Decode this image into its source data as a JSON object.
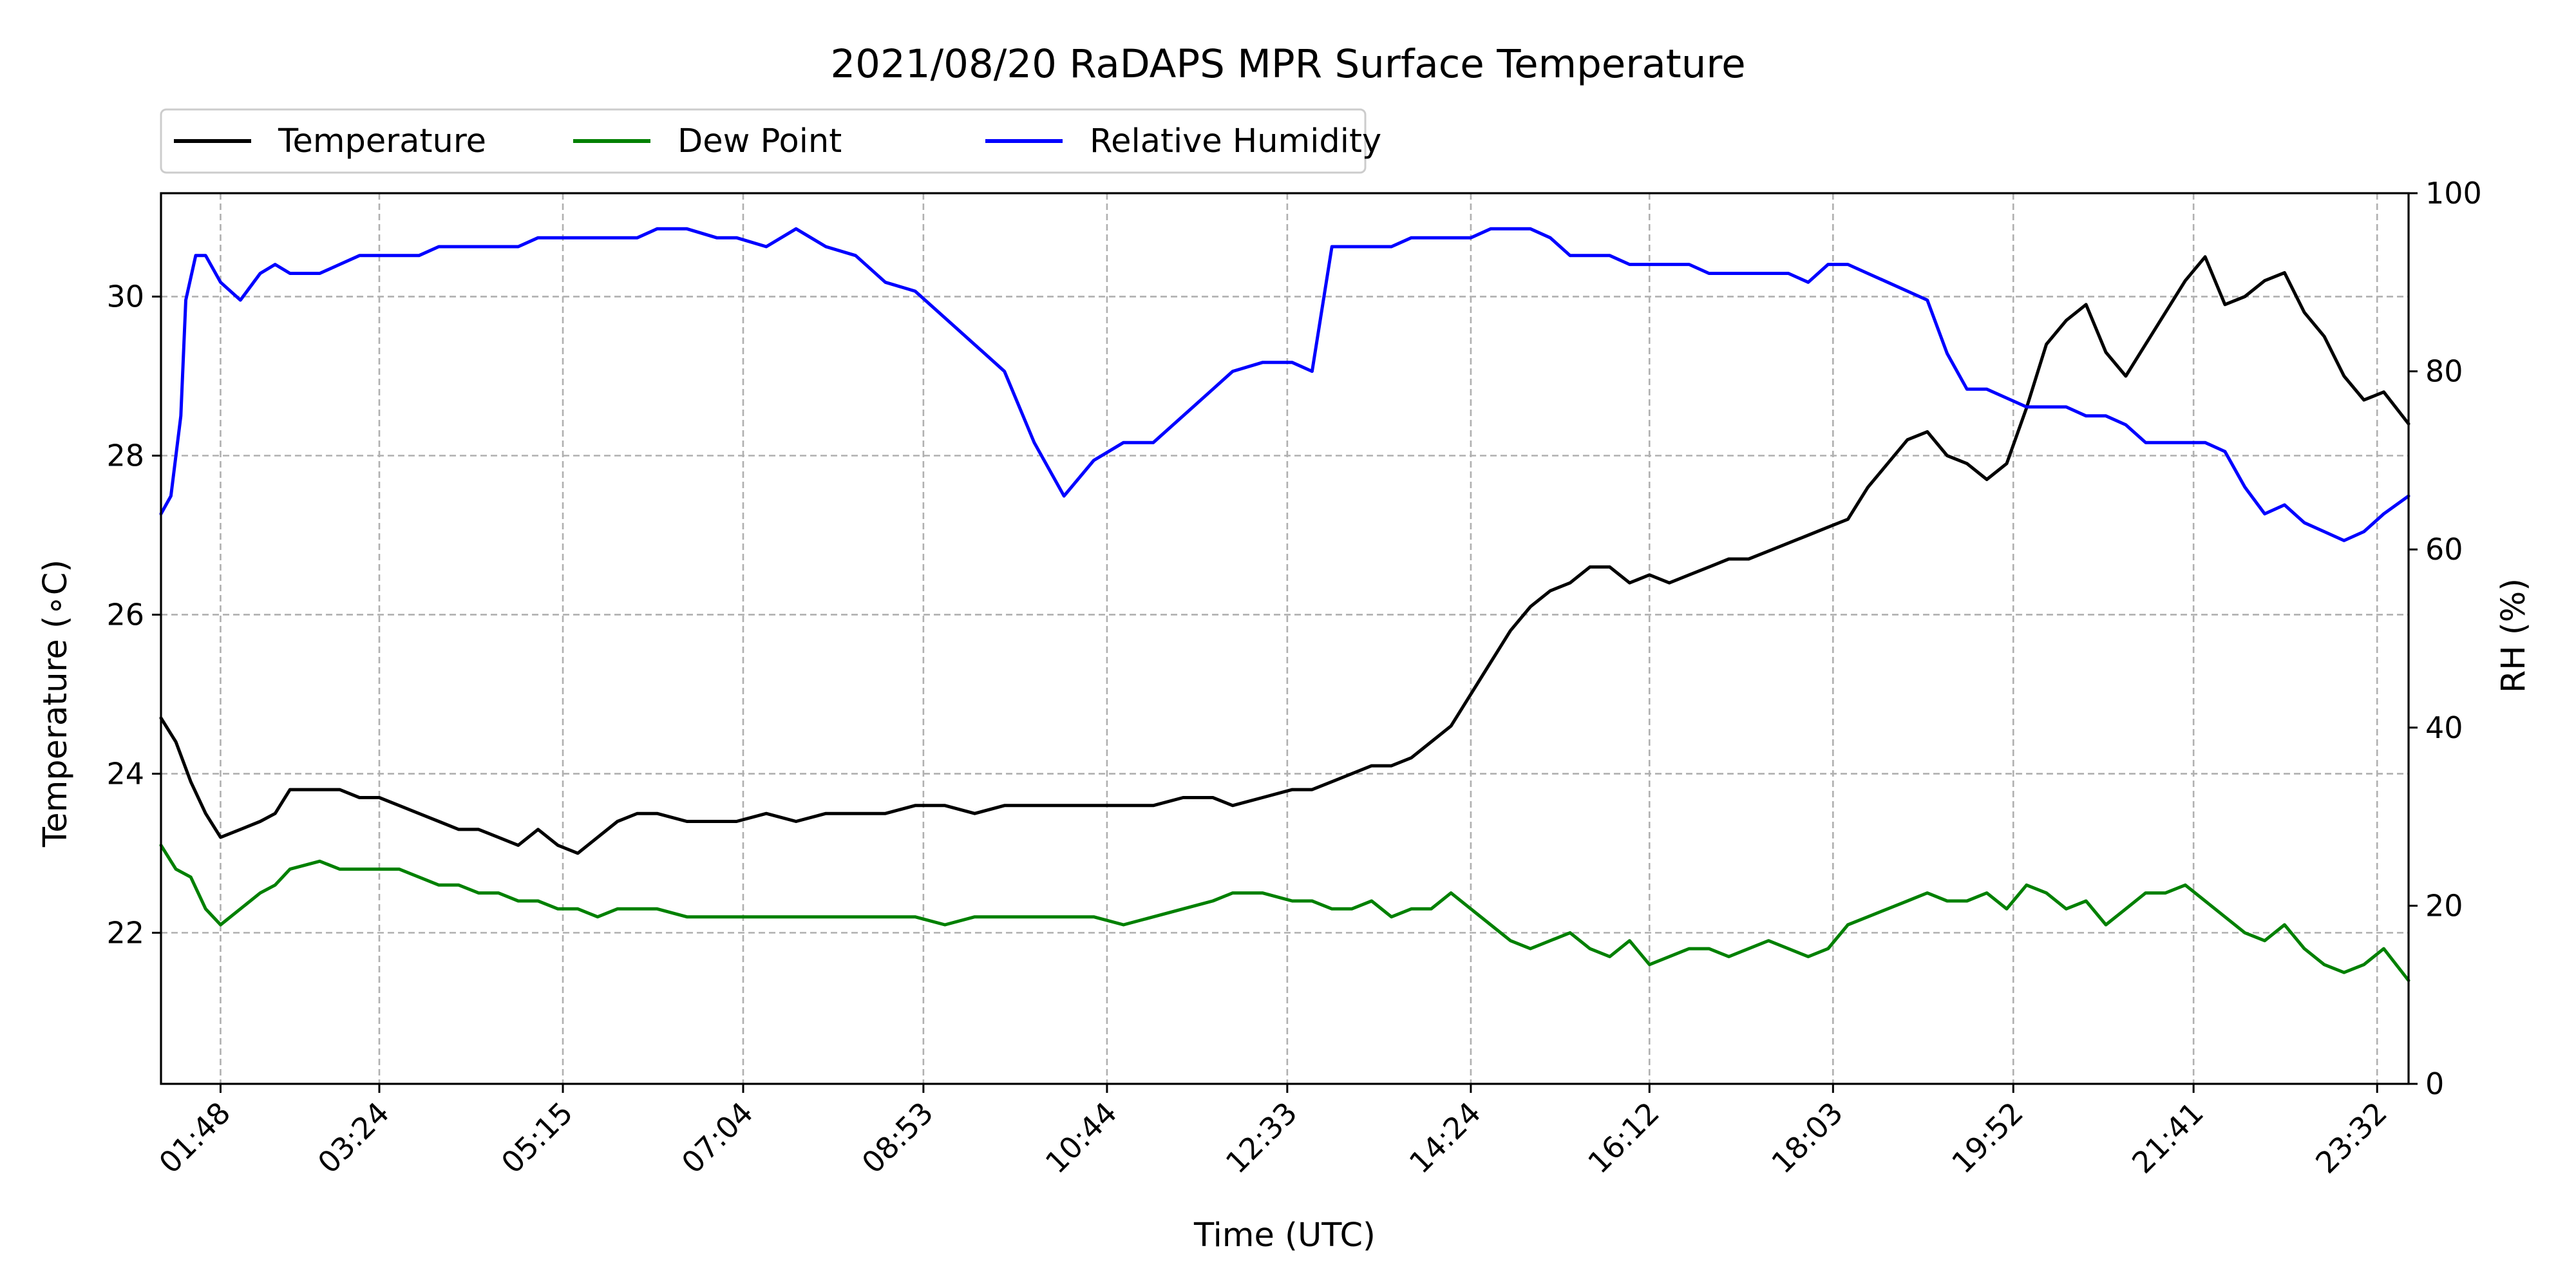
{
  "chart_data": {
    "type": "line",
    "title": "2021/08/20 RaDAPS MPR Surface Temperature",
    "xlabel": "Time (UTC)",
    "ylabel_left": "Temperature (∘C)",
    "ylabel_right": "RH (%)",
    "x_unit": "hours UTC",
    "xlim": [
      1.2,
      23.85
    ],
    "ylim_left": [
      20.1,
      31.3
    ],
    "ylim_right": [
      0,
      100
    ],
    "x_ticks": [
      {
        "label": "01:48",
        "value": 1.8
      },
      {
        "label": "03:24",
        "value": 3.4
      },
      {
        "label": "05:15",
        "value": 5.25
      },
      {
        "label": "07:04",
        "value": 7.0667
      },
      {
        "label": "08:53",
        "value": 8.8833
      },
      {
        "label": "10:44",
        "value": 10.7333
      },
      {
        "label": "12:33",
        "value": 12.55
      },
      {
        "label": "14:24",
        "value": 14.4
      },
      {
        "label": "16:12",
        "value": 16.2
      },
      {
        "label": "18:03",
        "value": 18.05
      },
      {
        "label": "19:52",
        "value": 19.8667
      },
      {
        "label": "21:41",
        "value": 21.6833
      },
      {
        "label": "23:32",
        "value": 23.5333
      }
    ],
    "y_ticks_left": [
      22,
      24,
      26,
      28,
      30
    ],
    "y_ticks_right": [
      0,
      20,
      40,
      60,
      80,
      100
    ],
    "grid": true,
    "legend_position": "top-left-above",
    "series": [
      {
        "name": "Temperature",
        "axis": "left",
        "color": "#000000",
        "x": [
          1.2,
          1.35,
          1.5,
          1.65,
          1.8,
          2.0,
          2.2,
          2.35,
          2.5,
          2.8,
          3.0,
          3.2,
          3.4,
          3.6,
          3.8,
          4.0,
          4.2,
          4.4,
          4.6,
          4.8,
          5.0,
          5.2,
          5.4,
          5.6,
          5.8,
          6.0,
          6.2,
          6.5,
          6.8,
          7.0,
          7.3,
          7.6,
          7.9,
          8.2,
          8.5,
          8.8,
          9.1,
          9.4,
          9.7,
          10.0,
          10.3,
          10.6,
          10.9,
          11.2,
          11.5,
          11.8,
          12.0,
          12.3,
          12.6,
          12.8,
          13.0,
          13.2,
          13.4,
          13.6,
          13.8,
          14.0,
          14.2,
          14.4,
          14.6,
          14.8,
          15.0,
          15.2,
          15.4,
          15.6,
          15.8,
          16.0,
          16.2,
          16.4,
          16.6,
          16.8,
          17.0,
          17.2,
          17.4,
          17.6,
          17.8,
          18.0,
          18.2,
          18.4,
          18.6,
          18.8,
          19.0,
          19.2,
          19.4,
          19.6,
          19.8,
          20.0,
          20.2,
          20.4,
          20.6,
          20.8,
          21.0,
          21.2,
          21.4,
          21.6,
          21.8,
          22.0,
          22.2,
          22.4,
          22.6,
          22.8,
          23.0,
          23.2,
          23.4,
          23.6,
          23.85
        ],
        "y": [
          24.7,
          24.4,
          23.9,
          23.5,
          23.2,
          23.3,
          23.4,
          23.5,
          23.8,
          23.8,
          23.8,
          23.7,
          23.7,
          23.6,
          23.5,
          23.4,
          23.3,
          23.3,
          23.2,
          23.1,
          23.3,
          23.1,
          23.0,
          23.2,
          23.4,
          23.5,
          23.5,
          23.4,
          23.4,
          23.4,
          23.5,
          23.4,
          23.5,
          23.5,
          23.5,
          23.6,
          23.6,
          23.5,
          23.6,
          23.6,
          23.6,
          23.6,
          23.6,
          23.6,
          23.7,
          23.7,
          23.6,
          23.7,
          23.8,
          23.8,
          23.9,
          24.0,
          24.1,
          24.1,
          24.2,
          24.4,
          24.6,
          25.0,
          25.4,
          25.8,
          26.1,
          26.3,
          26.4,
          26.6,
          26.6,
          26.4,
          26.5,
          26.4,
          26.5,
          26.6,
          26.7,
          26.7,
          26.8,
          26.9,
          27.0,
          27.1,
          27.2,
          27.6,
          27.9,
          28.2,
          28.3,
          28.0,
          27.9,
          27.7,
          27.9,
          28.6,
          29.4,
          29.7,
          29.9,
          29.3,
          29.0,
          29.4,
          29.8,
          30.2,
          30.5,
          29.9,
          30.0,
          30.2,
          30.3,
          29.8,
          29.5,
          29.0,
          28.7,
          28.8,
          28.4
        ]
      },
      {
        "name": "Dew Point",
        "axis": "left",
        "color": "#008000",
        "x": [
          1.2,
          1.35,
          1.5,
          1.65,
          1.8,
          2.0,
          2.2,
          2.35,
          2.5,
          2.8,
          3.0,
          3.2,
          3.4,
          3.6,
          3.8,
          4.0,
          4.2,
          4.4,
          4.6,
          4.8,
          5.0,
          5.2,
          5.4,
          5.6,
          5.8,
          6.0,
          6.2,
          6.5,
          6.8,
          7.0,
          7.3,
          7.6,
          7.9,
          8.2,
          8.5,
          8.8,
          9.1,
          9.4,
          9.7,
          10.0,
          10.3,
          10.6,
          10.9,
          11.2,
          11.5,
          11.8,
          12.0,
          12.3,
          12.6,
          12.8,
          13.0,
          13.2,
          13.4,
          13.6,
          13.8,
          14.0,
          14.2,
          14.4,
          14.6,
          14.8,
          15.0,
          15.2,
          15.4,
          15.6,
          15.8,
          16.0,
          16.2,
          16.4,
          16.6,
          16.8,
          17.0,
          17.2,
          17.4,
          17.6,
          17.8,
          18.0,
          18.2,
          18.4,
          18.6,
          18.8,
          19.0,
          19.2,
          19.4,
          19.6,
          19.8,
          20.0,
          20.2,
          20.4,
          20.6,
          20.8,
          21.0,
          21.2,
          21.4,
          21.6,
          21.8,
          22.0,
          22.2,
          22.4,
          22.6,
          22.8,
          23.0,
          23.2,
          23.4,
          23.6,
          23.85
        ],
        "y": [
          23.1,
          22.8,
          22.7,
          22.3,
          22.1,
          22.3,
          22.5,
          22.6,
          22.8,
          22.9,
          22.8,
          22.8,
          22.8,
          22.8,
          22.7,
          22.6,
          22.6,
          22.5,
          22.5,
          22.4,
          22.4,
          22.3,
          22.3,
          22.2,
          22.3,
          22.3,
          22.3,
          22.2,
          22.2,
          22.2,
          22.2,
          22.2,
          22.2,
          22.2,
          22.2,
          22.2,
          22.1,
          22.2,
          22.2,
          22.2,
          22.2,
          22.2,
          22.1,
          22.2,
          22.3,
          22.4,
          22.5,
          22.5,
          22.4,
          22.4,
          22.3,
          22.3,
          22.4,
          22.2,
          22.3,
          22.3,
          22.5,
          22.3,
          22.1,
          21.9,
          21.8,
          21.9,
          22.0,
          21.8,
          21.7,
          21.9,
          21.6,
          21.7,
          21.8,
          21.8,
          21.7,
          21.8,
          21.9,
          21.8,
          21.7,
          21.8,
          22.1,
          22.2,
          22.3,
          22.4,
          22.5,
          22.4,
          22.4,
          22.5,
          22.3,
          22.6,
          22.5,
          22.3,
          22.4,
          22.1,
          22.3,
          22.5,
          22.5,
          22.6,
          22.4,
          22.2,
          22.0,
          21.9,
          22.1,
          21.8,
          21.6,
          21.5,
          21.6,
          21.8,
          21.4
        ]
      },
      {
        "name": "Relative Humidity",
        "axis": "right",
        "color": "#0000ff",
        "x": [
          1.2,
          1.3,
          1.4,
          1.45,
          1.55,
          1.65,
          1.8,
          2.0,
          2.2,
          2.35,
          2.5,
          2.8,
          3.0,
          3.2,
          3.4,
          3.6,
          3.8,
          4.0,
          4.2,
          4.4,
          4.6,
          4.8,
          5.0,
          5.2,
          5.4,
          5.6,
          5.8,
          6.0,
          6.2,
          6.5,
          6.8,
          7.0,
          7.3,
          7.6,
          7.9,
          8.2,
          8.5,
          8.8,
          9.1,
          9.4,
          9.7,
          10.0,
          10.3,
          10.6,
          10.9,
          11.2,
          11.5,
          11.8,
          12.0,
          12.3,
          12.6,
          12.8,
          13.0,
          13.2,
          13.4,
          13.6,
          13.8,
          14.0,
          14.2,
          14.4,
          14.6,
          14.8,
          15.0,
          15.2,
          15.4,
          15.6,
          15.8,
          16.0,
          16.2,
          16.4,
          16.6,
          16.8,
          17.0,
          17.2,
          17.4,
          17.6,
          17.8,
          18.0,
          18.2,
          18.4,
          18.6,
          18.8,
          19.0,
          19.2,
          19.4,
          19.6,
          19.8,
          20.0,
          20.2,
          20.4,
          20.6,
          20.8,
          21.0,
          21.2,
          21.4,
          21.6,
          21.8,
          22.0,
          22.2,
          22.4,
          22.6,
          22.8,
          23.0,
          23.2,
          23.4,
          23.6,
          23.85
        ],
        "y": [
          64,
          66,
          75,
          88,
          93,
          93,
          90,
          88,
          91,
          92,
          91,
          91,
          92,
          93,
          93,
          93,
          93,
          94,
          94,
          94,
          94,
          94,
          95,
          95,
          95,
          95,
          95,
          95,
          96,
          96,
          95,
          95,
          94,
          96,
          94,
          93,
          90,
          89,
          86,
          83,
          80,
          72,
          66,
          70,
          72,
          72,
          75,
          78,
          80,
          81,
          81,
          80,
          94,
          94,
          94,
          94,
          95,
          95,
          95,
          95,
          96,
          96,
          96,
          95,
          93,
          93,
          93,
          92,
          92,
          92,
          92,
          91,
          91,
          91,
          91,
          91,
          90,
          92,
          92,
          91,
          90,
          89,
          88,
          82,
          78,
          78,
          77,
          76,
          76,
          76,
          75,
          75,
          74,
          72,
          72,
          72,
          72,
          71,
          67,
          64,
          65,
          63,
          62,
          61,
          62,
          64,
          66
        ]
      }
    ]
  }
}
